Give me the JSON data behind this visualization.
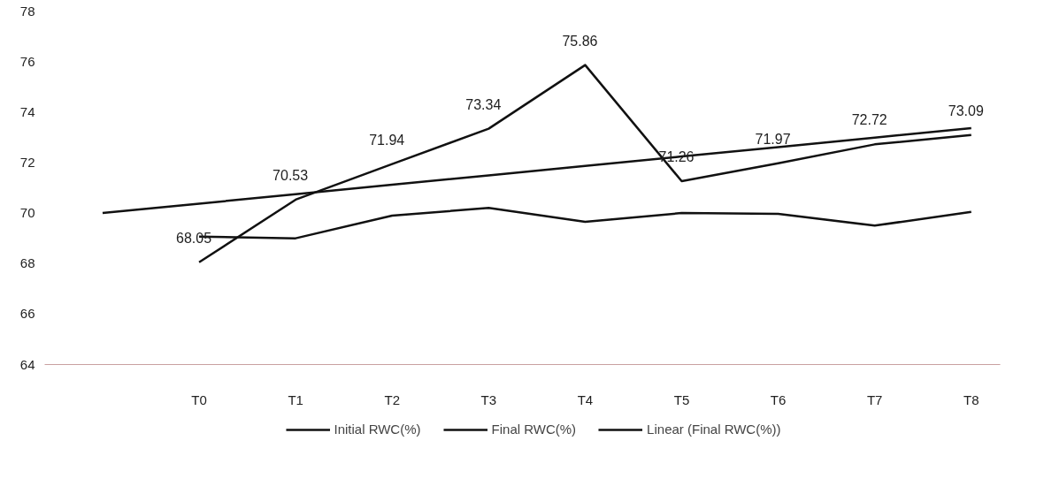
{
  "chart_data": {
    "type": "line",
    "categories": [
      null,
      "T0",
      "T1",
      "T2",
      "T3",
      "T4",
      "T5",
      "T6",
      "T7",
      "T8"
    ],
    "ylim": [
      64,
      78
    ],
    "yticks": [
      64,
      66,
      68,
      70,
      72,
      74,
      76,
      78
    ],
    "series": [
      {
        "name": "Initial RWC(%)",
        "color": "#111111",
        "values": [
          null,
          69.07,
          69.0,
          69.9,
          70.2,
          69.65,
          70.0,
          69.97,
          69.5,
          70.05
        ]
      },
      {
        "name": "Final RWC(%)",
        "color": "#111111",
        "values": [
          null,
          68.05,
          70.53,
          71.94,
          73.34,
          75.86,
          71.26,
          71.97,
          72.72,
          73.09
        ],
        "value_labels": [
          null,
          "68.05",
          "70.53",
          "71.94",
          "73.34",
          "75.86",
          "71.26",
          "71.97",
          "72.72",
          "73.09"
        ]
      },
      {
        "name": "Linear (Final RWC(%))",
        "color": "#111111",
        "values": [
          70.0,
          70.37,
          70.75,
          71.12,
          71.49,
          71.87,
          72.24,
          72.61,
          72.99,
          73.36
        ]
      }
    ],
    "legend": "bottom",
    "marker": "none",
    "line_style": "solid"
  }
}
